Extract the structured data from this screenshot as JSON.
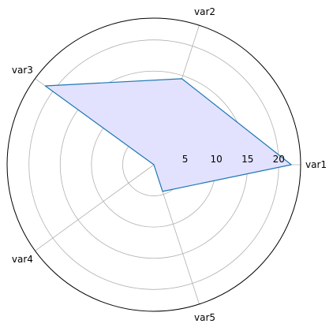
{
  "chart_data": {
    "type": "radar",
    "categories": [
      "var1",
      "var2",
      "var3",
      "var4",
      "var5"
    ],
    "series": [
      {
        "values": [
          22,
          14.5,
          21.5,
          0,
          4.5
        ]
      }
    ],
    "rlim": [
      0,
      23.5
    ],
    "rticks": [
      5,
      10,
      15,
      20
    ],
    "rtick_labels": [
      "5",
      "10",
      "15",
      "20"
    ],
    "grid": true,
    "colors": {
      "line": "#1f77b4",
      "fill": "#e2e2ff",
      "grid": "#b0b0b0",
      "frame": "#000000"
    }
  }
}
